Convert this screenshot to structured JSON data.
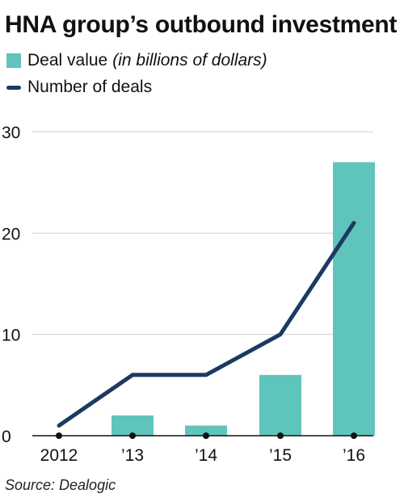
{
  "title": "HNA group’s outbound investment",
  "legend": {
    "bars_label": "Deal value",
    "bars_note": "(in billions of dollars)",
    "line_label": "Number of deals"
  },
  "source": "Source: Dealogic",
  "colors": {
    "bar": "#5fc4bc",
    "line": "#1b3a63",
    "grid": "#cfcfcf",
    "axis": "#111111"
  },
  "chart_data": {
    "type": "bar",
    "title": "HNA group’s outbound investment",
    "categories": [
      "2012",
      "’13",
      "’14",
      "’15",
      "’16"
    ],
    "series": [
      {
        "name": "Deal value (in billions of dollars)",
        "kind": "bar",
        "values": [
          0,
          2,
          1,
          6,
          27
        ]
      },
      {
        "name": "Number of deals",
        "kind": "line",
        "values": [
          1,
          6,
          6,
          10,
          21
        ]
      }
    ],
    "yticks": [
      0,
      10,
      20,
      30
    ],
    "ylim": [
      0,
      30
    ],
    "grid": true,
    "legend_position": "top-left"
  }
}
